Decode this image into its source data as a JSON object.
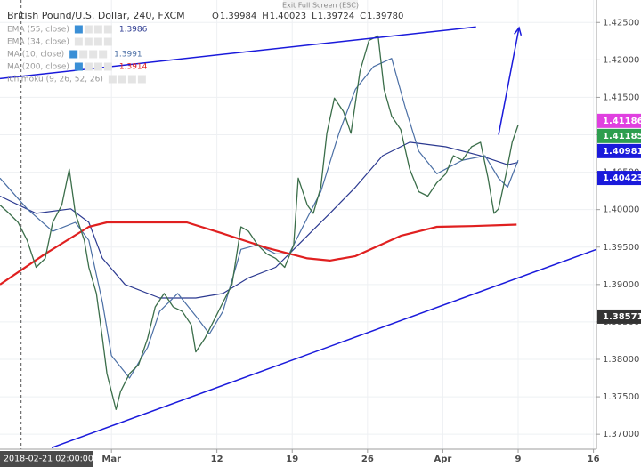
{
  "header": {
    "exit_button": "Exit Full Screen (ESC)"
  },
  "chart_data": {
    "type": "line",
    "title": "British Pound/U.S. Dollar, 240, FXCM",
    "ohlc": [
      {
        "label": "O",
        "value": "1.39984"
      },
      {
        "label": "H",
        "value": "1.40023"
      },
      {
        "label": "L",
        "value": "1.39724"
      },
      {
        "label": "C",
        "value": "1.39780"
      }
    ],
    "xlim": [
      -7.4,
      32.2
    ],
    "ylim": [
      1.368,
      1.428
    ],
    "xticks": [
      {
        "value": 0,
        "label": "Mar"
      },
      {
        "value": 7,
        "label": "12"
      },
      {
        "value": 12,
        "label": "19"
      },
      {
        "value": 17,
        "label": "26"
      },
      {
        "value": 22,
        "label": "Apr"
      },
      {
        "value": 27,
        "label": "9"
      },
      {
        "value": 32,
        "label": "16"
      }
    ],
    "yticks": [
      {
        "value": 1.37,
        "label": "1.37000"
      },
      {
        "value": 1.375,
        "label": "1.37500"
      },
      {
        "value": 1.38,
        "label": "1.38000"
      },
      {
        "value": 1.385,
        "label": "1.38500"
      },
      {
        "value": 1.39,
        "label": "1.39000"
      },
      {
        "value": 1.395,
        "label": "1.39500"
      },
      {
        "value": 1.4,
        "label": "1.40000"
      },
      {
        "value": 1.405,
        "label": "1.40500"
      },
      {
        "value": 1.41,
        "label": "1.41000"
      },
      {
        "value": 1.415,
        "label": "1.41500"
      },
      {
        "value": 1.42,
        "label": "1.42000"
      },
      {
        "value": 1.425,
        "label": "1.42500"
      }
    ],
    "grid": true,
    "price": {
      "color": "#3b6e4a",
      "x": [
        -7.4,
        -6.8,
        -6.2,
        -5.6,
        -5.0,
        -4.4,
        -3.9,
        -3.3,
        -2.8,
        -2.4,
        -1.8,
        -1.5,
        -1.0,
        -0.6,
        -0.3,
        0.3,
        0.6,
        1.2,
        1.8,
        2.4,
        2.9,
        3.5,
        4.1,
        4.7,
        5.3,
        5.6,
        6.2,
        6.8,
        7.4,
        8.0,
        8.6,
        9.1,
        9.7,
        10.3,
        10.9,
        11.5,
        12.1,
        12.4,
        13.0,
        13.4,
        13.9,
        14.3,
        14.8,
        15.4,
        15.9,
        16.5,
        17.1,
        17.7,
        18.1,
        18.6,
        19.2,
        19.8,
        20.4,
        21.0,
        21.6,
        22.2,
        22.7,
        23.3,
        23.9,
        24.5,
        25.0,
        25.4,
        25.7,
        26.2,
        26.6,
        27.0
      ],
      "values": [
        1.4006,
        1.3995,
        1.3983,
        1.3959,
        1.3923,
        1.3935,
        1.3983,
        1.4006,
        1.4054,
        1.3995,
        1.3959,
        1.3923,
        1.3888,
        1.3828,
        1.3781,
        1.3733,
        1.3757,
        1.3781,
        1.3793,
        1.3828,
        1.387,
        1.3888,
        1.387,
        1.3864,
        1.3846,
        1.381,
        1.3828,
        1.3852,
        1.3876,
        1.39,
        1.3977,
        1.3971,
        1.3953,
        1.3941,
        1.3935,
        1.3923,
        1.3953,
        1.4042,
        1.4006,
        1.3995,
        1.403,
        1.4102,
        1.4149,
        1.4131,
        1.4102,
        1.4185,
        1.4226,
        1.4232,
        1.4161,
        1.4125,
        1.4107,
        1.4054,
        1.4024,
        1.4018,
        1.4036,
        1.4048,
        1.4072,
        1.4066,
        1.4084,
        1.409,
        1.4042,
        1.3995,
        1.4001,
        1.4048,
        1.409,
        1.4113
      ]
    },
    "series": [
      {
        "name": "EMA (55, close)",
        "last": "1.3986",
        "color": "#2b3990",
        "visible": true,
        "x": [
          -7.4,
          -5.0,
          -2.7,
          -1.5,
          -0.6,
          0.9,
          3.2,
          5.6,
          7.4,
          9.1,
          10.9,
          12.1,
          14.5,
          16.2,
          18.0,
          19.8,
          22.2,
          24.5,
          26.3,
          27.0
        ],
        "values": [
          1.4018,
          1.3995,
          1.4001,
          1.3983,
          1.3935,
          1.39,
          1.3882,
          1.3882,
          1.3888,
          1.3909,
          1.3923,
          1.3947,
          1.3995,
          1.403,
          1.4072,
          1.409,
          1.4084,
          1.4072,
          1.406,
          1.4063
        ]
      },
      {
        "name": "EMA (34, close)",
        "color": "#c8c8c8",
        "visible": false
      },
      {
        "name": "MA (10, close)",
        "last": "1.3991",
        "color": "#4b6fa5",
        "visible": true,
        "x": [
          -7.4,
          -5.6,
          -3.9,
          -2.4,
          -1.5,
          -0.6,
          0.0,
          1.2,
          2.4,
          3.2,
          4.4,
          5.6,
          6.5,
          7.4,
          8.6,
          9.7,
          10.9,
          11.8,
          13.0,
          13.9,
          15.1,
          16.2,
          17.4,
          18.6,
          19.5,
          20.4,
          21.6,
          23.3,
          24.8,
          25.7,
          26.3,
          27.0
        ],
        "values": [
          1.4042,
          1.4001,
          1.3971,
          1.3983,
          1.3959,
          1.3876,
          1.3805,
          1.3775,
          1.3816,
          1.3864,
          1.3888,
          1.3858,
          1.3834,
          1.3864,
          1.3947,
          1.3953,
          1.3941,
          1.3941,
          1.3989,
          1.4024,
          1.4102,
          1.4161,
          1.4191,
          1.4202,
          1.4137,
          1.4078,
          1.4048,
          1.4066,
          1.4072,
          1.4042,
          1.403,
          1.4066
        ]
      },
      {
        "name": "MA (200, close)",
        "last": "1.3914",
        "color": "#e02020",
        "visible": true,
        "x": [
          -7.4,
          -4.4,
          -1.5,
          -0.3,
          5.0,
          7.4,
          10.3,
          13.0,
          14.5,
          16.2,
          19.2,
          21.6,
          23.9,
          26.9
        ],
        "values": [
          1.39,
          1.3941,
          1.3977,
          1.3983,
          1.3983,
          1.3968,
          1.3949,
          1.3935,
          1.3932,
          1.3938,
          1.3965,
          1.3977,
          1.3978,
          1.398
        ]
      },
      {
        "name": "Ichimoku (9, 26, 52, 26)",
        "color": "#c8c8c8",
        "visible": false
      }
    ],
    "price_tags": [
      {
        "value": 1.41186,
        "color": "#e040e0",
        "line": "solid"
      },
      {
        "value": 1.41185,
        "color": "#2e9e4f"
      },
      {
        "value": 1.40981,
        "color": "#1a1adb",
        "line": "solid"
      },
      {
        "value": 1.40423,
        "color": "#1a1adb",
        "line": "solid"
      },
      {
        "value": 1.38571,
        "color": "#333333",
        "line": "dashed"
      }
    ],
    "trend_lines": [
      {
        "x": [
          -7.4,
          24.2
        ],
        "y": [
          1.4175,
          1.4244
        ],
        "color": "#1a1adb"
      },
      {
        "x": [
          -3.97,
          32.2
        ],
        "y": [
          1.3682,
          1.3947
        ],
        "color": "#1a1adb"
      },
      {
        "x": [
          25.7,
          27.06
        ],
        "y": [
          1.41,
          1.4243
        ],
        "color": "#1a1adb",
        "arrow": true
      }
    ],
    "crosshair": {
      "x": -6,
      "label": "2018-02-21 02:00:00"
    }
  }
}
